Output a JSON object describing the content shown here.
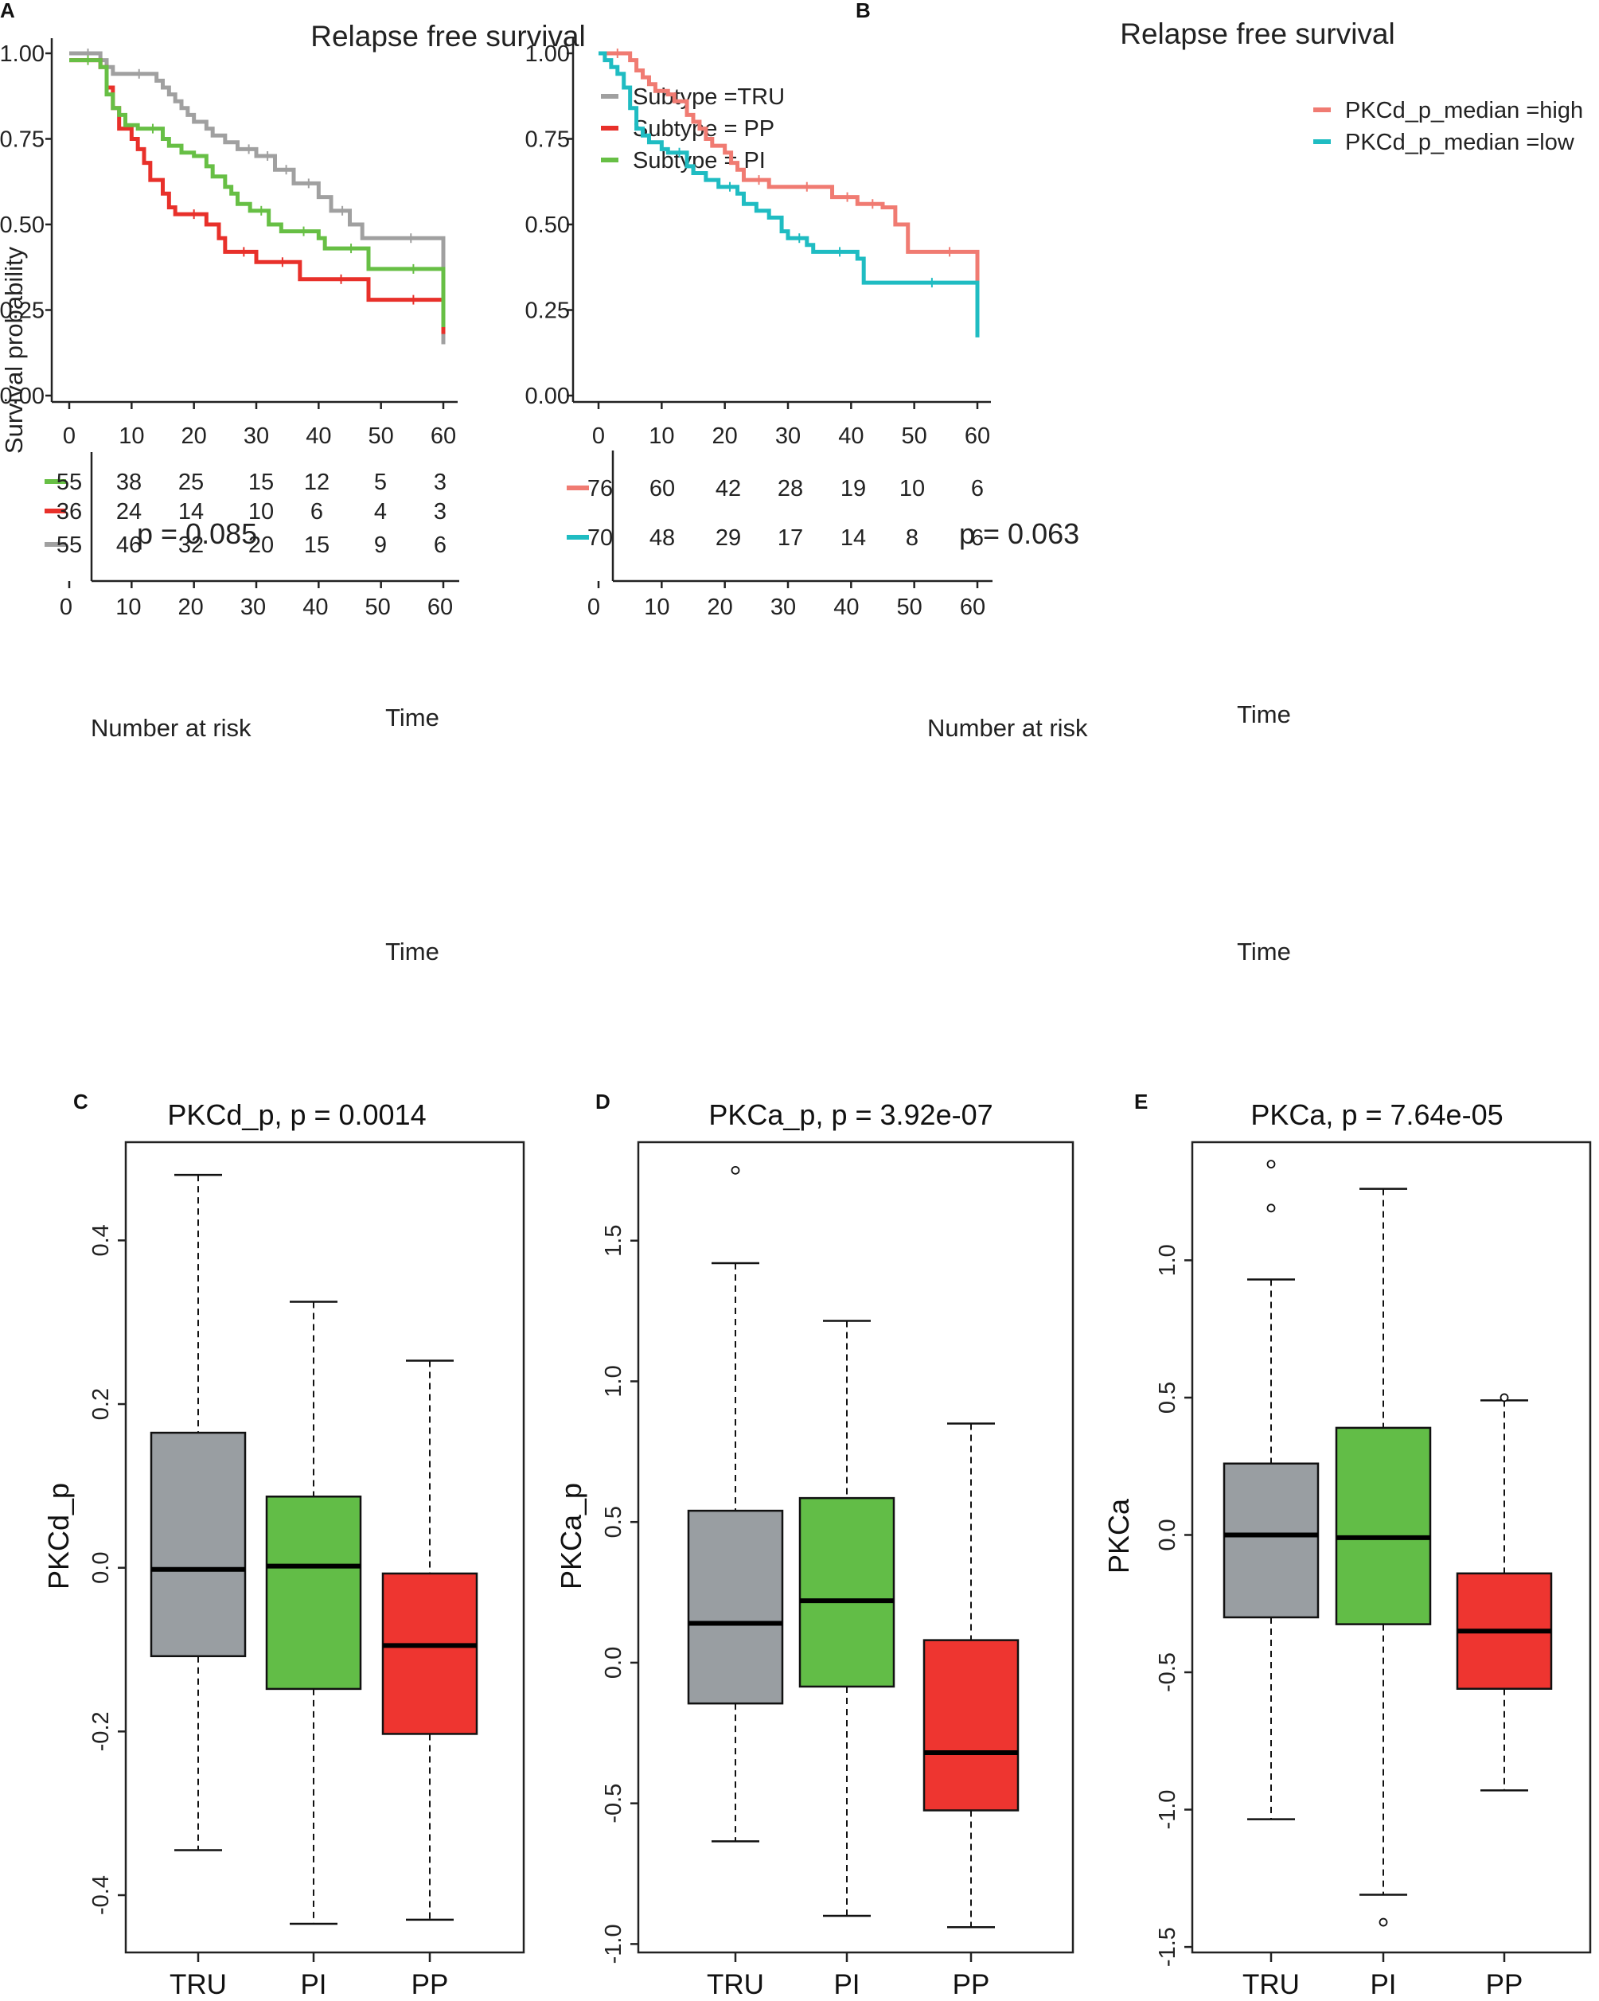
{
  "chart_data": [
    {
      "id": "A",
      "panel_label": "A",
      "type": "line",
      "subtype": "kaplan-meier",
      "title": "Relapse free survival",
      "xlabel": "Time",
      "ylabel": "Survival probability",
      "xlim": [
        0,
        60
      ],
      "ylim": [
        0,
        1
      ],
      "xticks": [
        0,
        10,
        20,
        30,
        40,
        50,
        60
      ],
      "yticks": [
        0.0,
        0.25,
        0.5,
        0.75,
        1.0
      ],
      "ytick_labels": [
        "0.00",
        "0.25",
        "0.50",
        "0.75",
        "1.00"
      ],
      "pvalue_text": "p = 0.085",
      "legend_position": "top-right",
      "series": [
        {
          "name": "Subtype =TRU",
          "color": "#a0a0a0",
          "steps": [
            [
              0,
              1.0
            ],
            [
              5,
              0.98
            ],
            [
              6,
              0.96
            ],
            [
              7,
              0.94
            ],
            [
              14,
              0.92
            ],
            [
              15,
              0.9
            ],
            [
              16,
              0.88
            ],
            [
              17,
              0.86
            ],
            [
              18,
              0.84
            ],
            [
              19,
              0.82
            ],
            [
              20,
              0.8
            ],
            [
              22,
              0.78
            ],
            [
              23,
              0.76
            ],
            [
              25,
              0.74
            ],
            [
              27,
              0.72
            ],
            [
              30,
              0.7
            ],
            [
              33,
              0.66
            ],
            [
              36,
              0.62
            ],
            [
              40,
              0.58
            ],
            [
              42,
              0.54
            ],
            [
              45,
              0.5
            ],
            [
              47,
              0.46
            ],
            [
              60,
              0.45
            ]
          ],
          "end_drop": 0.15
        },
        {
          "name": "Subtype = PP",
          "color": "#e8302a",
          "steps": [
            [
              0,
              0.98
            ],
            [
              5,
              0.96
            ],
            [
              6,
              0.9
            ],
            [
              7,
              0.84
            ],
            [
              8,
              0.78
            ],
            [
              10,
              0.75
            ],
            [
              11,
              0.72
            ],
            [
              12,
              0.68
            ],
            [
              13,
              0.63
            ],
            [
              15,
              0.59
            ],
            [
              16,
              0.55
            ],
            [
              17,
              0.53
            ],
            [
              22,
              0.5
            ],
            [
              24,
              0.46
            ],
            [
              25,
              0.42
            ],
            [
              30,
              0.39
            ],
            [
              37,
              0.34
            ],
            [
              48,
              0.28
            ]
          ],
          "end_drop": 0.18
        },
        {
          "name": "Subtype = PI",
          "color": "#67bf45",
          "steps": [
            [
              0,
              0.98
            ],
            [
              5,
              0.96
            ],
            [
              6,
              0.88
            ],
            [
              7,
              0.84
            ],
            [
              8,
              0.82
            ],
            [
              9,
              0.79
            ],
            [
              11,
              0.78
            ],
            [
              15,
              0.75
            ],
            [
              16,
              0.73
            ],
            [
              18,
              0.71
            ],
            [
              20,
              0.7
            ],
            [
              22,
              0.67
            ],
            [
              23,
              0.64
            ],
            [
              25,
              0.61
            ],
            [
              26,
              0.59
            ],
            [
              27,
              0.56
            ],
            [
              29,
              0.54
            ],
            [
              32,
              0.5
            ],
            [
              34,
              0.48
            ],
            [
              40,
              0.46
            ],
            [
              41,
              0.43
            ],
            [
              48,
              0.37
            ]
          ],
          "end_drop": 0.2
        }
      ],
      "risk_table": {
        "title": "Number at risk",
        "xlabel": "Time",
        "xticks": [
          0,
          10,
          20,
          30,
          40,
          50,
          60
        ],
        "rows": [
          {
            "color": "#67bf45",
            "values": [
              "55",
              "38",
              "25",
              "15",
              "12",
              "5",
              "3"
            ]
          },
          {
            "color": "#e8302a",
            "values": [
              "36",
              "24",
              "14",
              "10",
              "6",
              "4",
              "3"
            ]
          },
          {
            "color": "#a0a0a0",
            "values": [
              "55",
              "46",
              "32",
              "20",
              "15",
              "9",
              "6"
            ]
          }
        ]
      }
    },
    {
      "id": "B",
      "panel_label": "B",
      "type": "line",
      "subtype": "kaplan-meier",
      "title": "Relapse free survival",
      "xlabel": "Time",
      "xlim": [
        0,
        60
      ],
      "ylim": [
        0,
        1
      ],
      "xticks": [
        0,
        10,
        20,
        30,
        40,
        50,
        60
      ],
      "yticks": [
        0.0,
        0.25,
        0.5,
        0.75,
        1.0
      ],
      "ytick_labels": [
        "0.00",
        "0.25",
        "0.50",
        "0.75",
        "1.00"
      ],
      "pvalue_text": "p = 0.063",
      "legend_position": "top-right",
      "series": [
        {
          "name": "PKCd_p_median =high",
          "color": "#f07b72",
          "steps": [
            [
              0,
              1.0
            ],
            [
              5,
              0.98
            ],
            [
              6,
              0.95
            ],
            [
              7,
              0.93
            ],
            [
              8,
              0.91
            ],
            [
              9,
              0.89
            ],
            [
              11,
              0.88
            ],
            [
              12,
              0.86
            ],
            [
              14,
              0.82
            ],
            [
              15,
              0.8
            ],
            [
              16,
              0.78
            ],
            [
              17,
              0.75
            ],
            [
              18,
              0.73
            ],
            [
              20,
              0.71
            ],
            [
              21,
              0.68
            ],
            [
              22,
              0.66
            ],
            [
              23,
              0.63
            ],
            [
              27,
              0.61
            ],
            [
              37,
              0.58
            ],
            [
              41,
              0.56
            ],
            [
              45,
              0.55
            ],
            [
              47,
              0.5
            ],
            [
              49,
              0.42
            ],
            [
              60,
              0.41
            ]
          ],
          "end_drop": 0.21
        },
        {
          "name": "PKCd_p_median =low",
          "color": "#1fbcc2",
          "steps": [
            [
              0,
              1.0
            ],
            [
              1,
              0.98
            ],
            [
              2,
              0.96
            ],
            [
              3,
              0.94
            ],
            [
              4,
              0.9
            ],
            [
              5,
              0.84
            ],
            [
              6,
              0.78
            ],
            [
              7,
              0.76
            ],
            [
              8,
              0.74
            ],
            [
              10,
              0.72
            ],
            [
              11,
              0.71
            ],
            [
              14,
              0.67
            ],
            [
              15,
              0.65
            ],
            [
              17,
              0.63
            ],
            [
              19,
              0.61
            ],
            [
              22,
              0.59
            ],
            [
              23,
              0.56
            ],
            [
              25,
              0.54
            ],
            [
              27,
              0.52
            ],
            [
              29,
              0.48
            ],
            [
              30,
              0.46
            ],
            [
              33,
              0.44
            ],
            [
              34,
              0.42
            ],
            [
              41,
              0.4
            ],
            [
              42,
              0.33
            ],
            [
              60,
              0.33
            ]
          ],
          "end_drop": 0.17
        }
      ],
      "risk_table": {
        "title": "Number at risk",
        "xlabel": "Time",
        "xticks": [
          0,
          10,
          20,
          30,
          40,
          50,
          60
        ],
        "rows": [
          {
            "color": "#f07b72",
            "values": [
              "76",
              "60",
              "42",
              "28",
              "19",
              "10",
              "6"
            ]
          },
          {
            "color": "#1fbcc2",
            "values": [
              "70",
              "48",
              "29",
              "17",
              "14",
              "8",
              "6"
            ]
          }
        ]
      }
    },
    {
      "id": "C",
      "panel_label": "C",
      "type": "box",
      "title": "PKCd_p, p = 0.0014",
      "ylabel": "PKCd_p",
      "ylim": [
        -0.47,
        0.52
      ],
      "yticks": [
        -0.4,
        -0.2,
        0.0,
        0.2,
        0.4
      ],
      "ytick_labels": [
        "-0.4",
        "-0.2",
        "0.0",
        "0.2",
        "0.4"
      ],
      "categories": [
        "TRU",
        "PI",
        "PP"
      ],
      "boxes": [
        {
          "name": "TRU",
          "color": "#999ea2",
          "min": -0.345,
          "q1": -0.108,
          "median": -0.002,
          "q3": 0.165,
          "max": 0.48,
          "outliers": []
        },
        {
          "name": "PI",
          "color": "#62bd47",
          "min": -0.435,
          "q1": -0.148,
          "median": 0.002,
          "q3": 0.087,
          "max": 0.325,
          "outliers": []
        },
        {
          "name": "PP",
          "color": "#ee3530",
          "min": -0.43,
          "q1": -0.203,
          "median": -0.095,
          "q3": -0.007,
          "max": 0.253,
          "outliers": []
        }
      ]
    },
    {
      "id": "D",
      "panel_label": "D",
      "type": "box",
      "title": "PKCa_p, p = 3.92e-07",
      "ylabel": "PKCa_p",
      "ylim": [
        -1.03,
        1.85
      ],
      "yticks": [
        -1.0,
        -0.5,
        0.0,
        0.5,
        1.0,
        1.5
      ],
      "ytick_labels": [
        "-1.0",
        "-0.5",
        "0.0",
        "0.5",
        "1.0",
        "1.5"
      ],
      "categories": [
        "TRU",
        "PI",
        "PP"
      ],
      "boxes": [
        {
          "name": "TRU",
          "color": "#999ea2",
          "min": -0.635,
          "q1": -0.145,
          "median": 0.14,
          "q3": 0.54,
          "max": 1.42,
          "outliers": [
            1.75
          ]
        },
        {
          "name": "PI",
          "color": "#62bd47",
          "min": -0.9,
          "q1": -0.085,
          "median": 0.22,
          "q3": 0.585,
          "max": 1.215,
          "outliers": []
        },
        {
          "name": "PP",
          "color": "#ee3530",
          "min": -0.94,
          "q1": -0.525,
          "median": -0.32,
          "q3": 0.08,
          "max": 0.85,
          "outliers": []
        }
      ]
    },
    {
      "id": "E",
      "panel_label": "E",
      "type": "box",
      "title": "PKCa, p = 7.64e-05",
      "ylabel": "PKCa",
      "ylim": [
        -1.52,
        1.43
      ],
      "yticks": [
        -1.5,
        -1.0,
        -0.5,
        0.0,
        0.5,
        1.0
      ],
      "ytick_labels": [
        "-1.5",
        "-1.0",
        "-0.5",
        "0.0",
        "0.5",
        "1.0"
      ],
      "categories": [
        "TRU",
        "PI",
        "PP"
      ],
      "boxes": [
        {
          "name": "TRU",
          "color": "#999ea2",
          "min": -1.035,
          "q1": -0.3,
          "median": 0.0,
          "q3": 0.26,
          "max": 0.93,
          "outliers": [
            1.19,
            1.35
          ]
        },
        {
          "name": "PI",
          "color": "#62bd47",
          "min": -1.31,
          "q1": -0.325,
          "median": -0.01,
          "q3": 0.39,
          "max": 1.26,
          "outliers": [
            -1.41
          ]
        },
        {
          "name": "PP",
          "color": "#ee3530",
          "min": -0.93,
          "q1": -0.56,
          "median": -0.35,
          "q3": -0.14,
          "max": 0.49,
          "outliers": [
            0.5
          ]
        }
      ]
    }
  ]
}
